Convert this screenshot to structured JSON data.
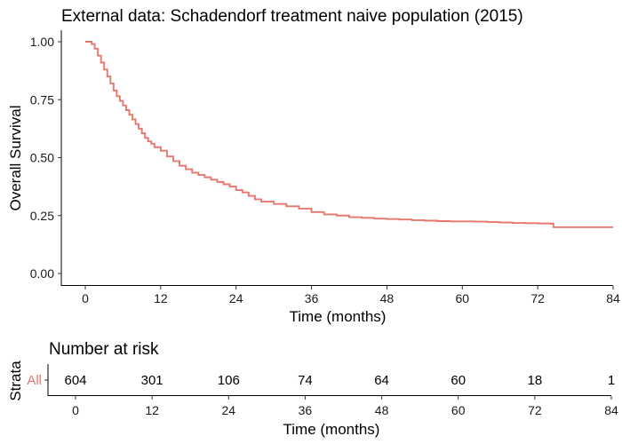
{
  "chart_data": [
    {
      "type": "line",
      "subtype": "kaplan-meier",
      "title": "External data: Schadendorf treatment naive population (2015)",
      "xlabel": "Time (months)",
      "ylabel": "Overall Survival",
      "xlim": [
        0,
        84
      ],
      "ylim": [
        0,
        1
      ],
      "x_ticks": [
        0,
        12,
        24,
        36,
        48,
        60,
        72,
        84
      ],
      "y_ticks": [
        0,
        0.25,
        0.5,
        0.75,
        1
      ],
      "y_tick_labels": [
        "0.00",
        "0.25",
        "0.50",
        "0.75",
        "1.00"
      ],
      "grid": false,
      "legend": "none",
      "series": [
        {
          "color": "#E8776E",
          "x": [
            0,
            0.5,
            1,
            1.5,
            2,
            2.5,
            3,
            3.5,
            4,
            4.5,
            5,
            5.5,
            6,
            6.5,
            7,
            7.5,
            8,
            8.5,
            9,
            9.5,
            10,
            10.5,
            11,
            12,
            13,
            14,
            15,
            16,
            17,
            18,
            19,
            20,
            21,
            22,
            23,
            24,
            25,
            26,
            27,
            28,
            30,
            32,
            34,
            36,
            38,
            40,
            42,
            44,
            46,
            48,
            50,
            52,
            54,
            56,
            58,
            60,
            62,
            64,
            66,
            68,
            70,
            72,
            74,
            74.5,
            76,
            78,
            80,
            82,
            84
          ],
          "y": [
            1.0,
            1.0,
            0.99,
            0.97,
            0.94,
            0.91,
            0.88,
            0.85,
            0.82,
            0.79,
            0.765,
            0.745,
            0.725,
            0.705,
            0.685,
            0.665,
            0.645,
            0.625,
            0.605,
            0.585,
            0.57,
            0.56,
            0.545,
            0.53,
            0.505,
            0.485,
            0.465,
            0.45,
            0.435,
            0.425,
            0.415,
            0.405,
            0.395,
            0.385,
            0.375,
            0.36,
            0.35,
            0.335,
            0.32,
            0.31,
            0.3,
            0.29,
            0.28,
            0.265,
            0.255,
            0.25,
            0.243,
            0.24,
            0.237,
            0.235,
            0.233,
            0.23,
            0.228,
            0.226,
            0.225,
            0.225,
            0.224,
            0.222,
            0.22,
            0.218,
            0.217,
            0.216,
            0.215,
            0.2,
            0.2,
            0.2,
            0.2,
            0.2,
            0.2
          ]
        }
      ]
    },
    {
      "type": "table",
      "title": "Number at risk",
      "xlabel": "Time (months)",
      "ylabel": "Strata",
      "xlim": [
        0,
        84
      ],
      "x_ticks": [
        0,
        12,
        24,
        36,
        48,
        60,
        72,
        84
      ],
      "strata": [
        {
          "label": "All",
          "color": "#E8776E",
          "times": [
            0,
            12,
            24,
            36,
            48,
            60,
            72,
            84
          ],
          "values": [
            604,
            301,
            106,
            74,
            64,
            60,
            18,
            1
          ]
        }
      ]
    }
  ]
}
